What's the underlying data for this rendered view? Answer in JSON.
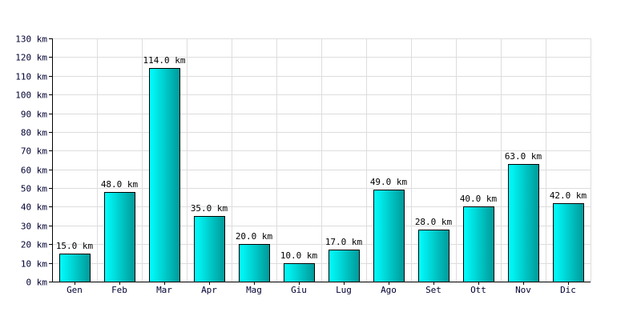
{
  "chart_data": {
    "type": "bar",
    "title": "",
    "xlabel": "",
    "ylabel": "",
    "unit": "km",
    "categories": [
      "Gen",
      "Feb",
      "Mar",
      "Apr",
      "Mag",
      "Giu",
      "Lug",
      "Ago",
      "Set",
      "Ott",
      "Nov",
      "Dic"
    ],
    "values": [
      15.0,
      48.0,
      114.0,
      35.0,
      20.0,
      10.0,
      17.0,
      49.0,
      28.0,
      40.0,
      63.0,
      42.0
    ],
    "data_labels": [
      "15.0 km",
      "48.0 km",
      "114.0 km",
      "35.0 km",
      "20.0 km",
      "10.0 km",
      "17.0 km",
      "49.0 km",
      "28.0 km",
      "40.0 km",
      "63.0 km",
      "42.0 km"
    ],
    "ylim": [
      0,
      130
    ],
    "y_ticks": [
      0,
      10,
      20,
      30,
      40,
      50,
      60,
      70,
      80,
      90,
      100,
      110,
      120,
      130
    ],
    "y_tick_labels": [
      "0 km",
      "10 km",
      "20 km",
      "30 km",
      "40 km",
      "50 km",
      "60 km",
      "70 km",
      "80 km",
      "90 km",
      "100 km",
      "110 km",
      "120 km",
      "130 km"
    ],
    "grid": true,
    "legend": "none",
    "colors": {
      "bar_light": "#00ffff",
      "bar_dark": "#009999",
      "bar_edge": "#000000",
      "grid": "#dddddd",
      "tick_text": "#000033"
    }
  }
}
